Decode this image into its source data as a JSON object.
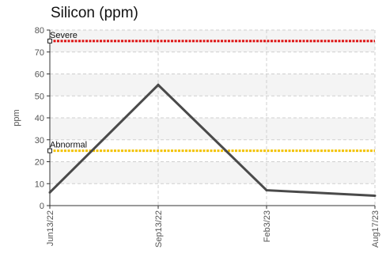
{
  "chart_data": {
    "type": "line",
    "title": "Silicon (ppm)",
    "ylabel": "ppm",
    "xlabel": "",
    "ylim": [
      0,
      80
    ],
    "yticks": [
      0,
      10,
      20,
      30,
      40,
      50,
      60,
      70,
      80
    ],
    "categories": [
      "Jun13/22",
      "Sep13/22",
      "Feb3/23",
      "Aug17/23"
    ],
    "series": [
      {
        "values": [
          6,
          55,
          7,
          4.5
        ]
      }
    ],
    "thresholds": [
      {
        "label": "Severe",
        "value": 75
      },
      {
        "label": "Abnormal",
        "value": 25
      }
    ],
    "grid": true,
    "colors": {
      "series": "#4a4a4a",
      "severe": "#dd1111",
      "abnormal": "#f2c200",
      "grid": "#cfcfcf",
      "band": "#f4f4f4"
    }
  }
}
